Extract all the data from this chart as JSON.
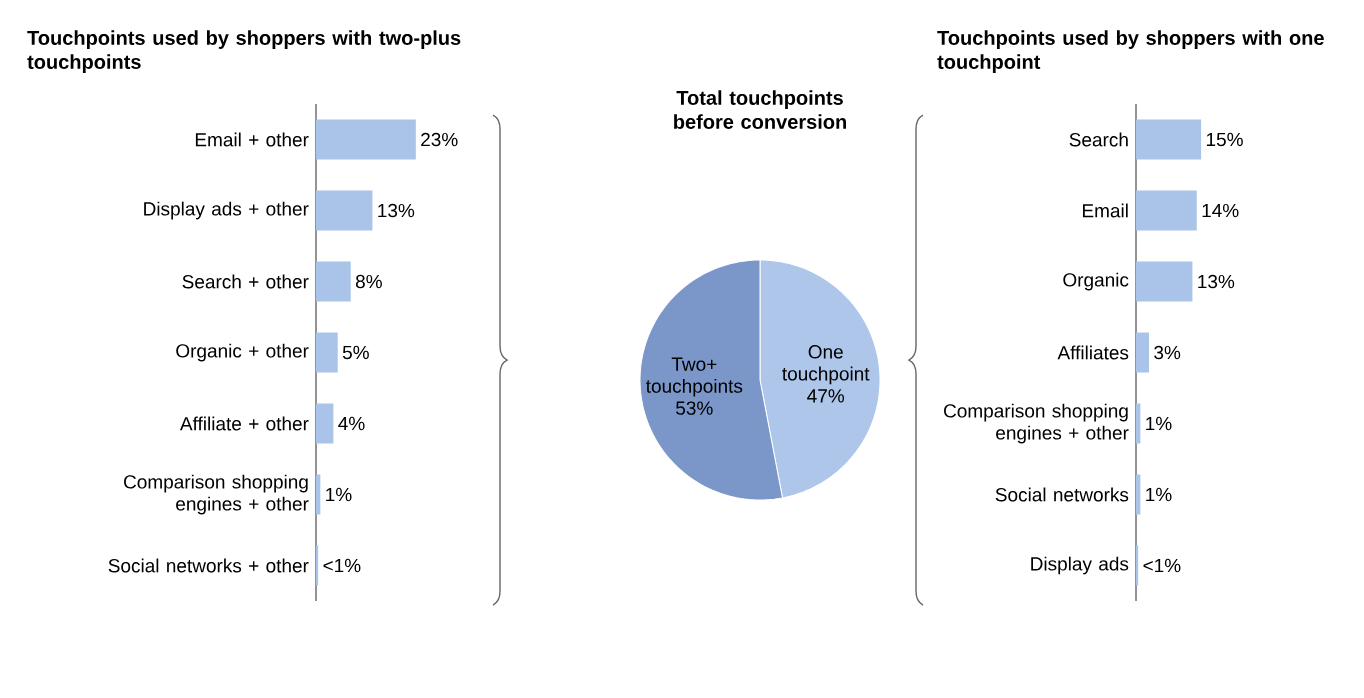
{
  "chart_data": [
    {
      "type": "bar",
      "orientation": "horizontal",
      "title": "Touchpoints used by shoppers with two-plus touchpoints",
      "color": "#a9c4e8",
      "categories": [
        "Email + other",
        "Display ads + other",
        "Search + other",
        "Organic + other",
        "Affiliate + other",
        "Comparison shopping engines + other",
        "Social networks + other"
      ],
      "values": [
        23,
        13,
        8,
        5,
        4,
        1,
        0.5
      ],
      "value_labels": [
        "23%",
        "13%",
        "8%",
        "5%",
        "4%",
        "1%",
        "<1%"
      ]
    },
    {
      "type": "pie",
      "title": "Total touchpoints before conversion",
      "categories": [
        "One touchpoint",
        "Two+ touchpoints"
      ],
      "values": [
        47,
        53
      ],
      "colors": [
        "#adc6ea",
        "#7b97ca"
      ],
      "value_labels": [
        "47%",
        "53%"
      ]
    },
    {
      "type": "bar",
      "orientation": "horizontal",
      "title": "Touchpoints used by shoppers with one touchpoint",
      "color": "#a9c4e8",
      "categories": [
        "Search",
        "Email",
        "Organic",
        "Affiliates",
        "Comparison shopping engines + other",
        "Social networks",
        "Display ads"
      ],
      "values": [
        15,
        14,
        13,
        3,
        1,
        1,
        0.5
      ],
      "value_labels": [
        "15%",
        "14%",
        "13%",
        "3%",
        "1%",
        "1%",
        "<1%"
      ]
    }
  ]
}
